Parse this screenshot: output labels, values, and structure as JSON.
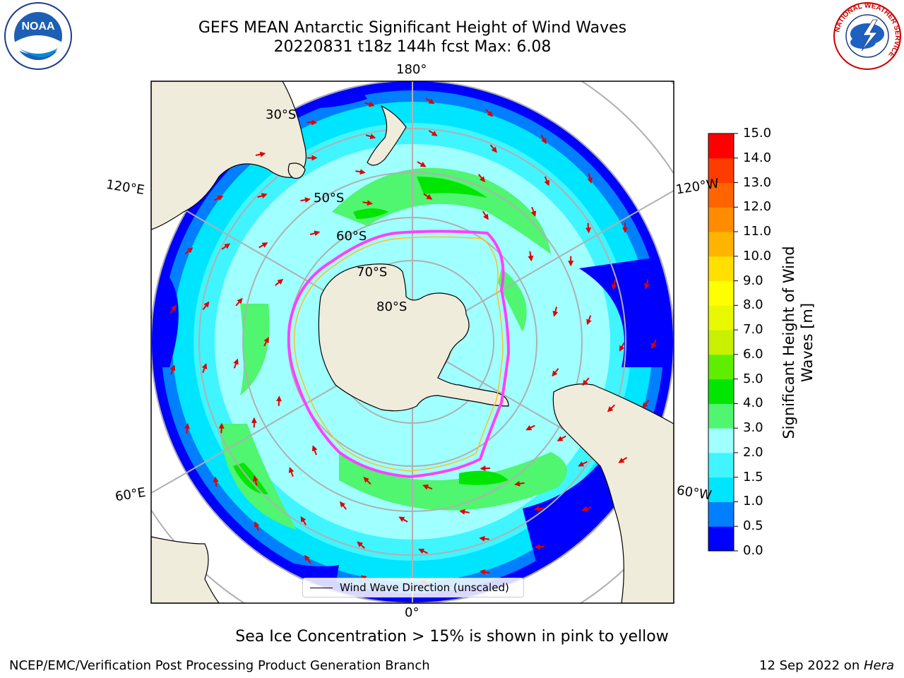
{
  "title": {
    "line1": "GEFS MEAN Antarctic Significant Height of Wind Waves",
    "line2": "20220831 t18z 144h fcst   Max: 6.08"
  },
  "map": {
    "longitude_labels": {
      "top": "180°",
      "bottom": "0°",
      "upper_left": "120°E",
      "upper_right": "120°W",
      "lower_left": "60°E",
      "lower_right": "60°W"
    },
    "latitude_labels": [
      "30°S",
      "50°S",
      "60°S",
      "70°S",
      "80°S"
    ],
    "legend_entry": "Wind Wave Direction (unscaled)",
    "colors": {
      "land": "#efecdc",
      "ice": "#ffffff",
      "grid": "#b0b0b0",
      "arrow": "#e00000"
    }
  },
  "colorbar": {
    "label": "Significant Height of Wind Waves [m]",
    "ticks": [
      "0.0",
      "0.5",
      "1.0",
      "1.5",
      "2.0",
      "3.0",
      "4.0",
      "5.0",
      "6.0",
      "7.0",
      "8.0",
      "9.0",
      "10.0",
      "11.0",
      "12.0",
      "13.0",
      "14.0",
      "15.0"
    ],
    "colors": [
      "#0000ff",
      "#0080ff",
      "#00e5ff",
      "#40f5ff",
      "#a0ffff",
      "#50f570",
      "#00e600",
      "#60ee00",
      "#c8f000",
      "#e8f800",
      "#ffff00",
      "#ffe000",
      "#ffb400",
      "#ff8c00",
      "#ff6400",
      "#ff3c00",
      "#ff0000"
    ]
  },
  "bottom_note": "Sea Ice Concentration > 15% is shown in pink to yellow",
  "footer": {
    "left": "NCEP/EMC/Verification Post Processing Product Generation Branch",
    "right_date": "12 Sep 2022 on ",
    "right_host": "Hera"
  },
  "logos": {
    "noaa": "NOAA",
    "nws_ring": "NATIONAL WEATHER SERVICE"
  }
}
